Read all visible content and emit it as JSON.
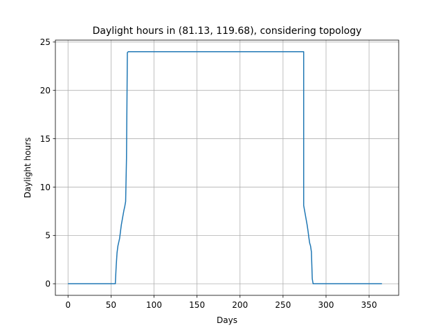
{
  "chart_data": {
    "type": "line",
    "title": "Daylight hours in (81.13, 119.68), considering topology",
    "xlabel": "Days",
    "ylabel": "Daylight hours",
    "xlim": [
      -14.7,
      384.5
    ],
    "ylim": [
      -1.2,
      25.2
    ],
    "xticks": [
      0,
      50,
      100,
      150,
      200,
      250,
      300,
      350
    ],
    "yticks": [
      0,
      5,
      10,
      15,
      20,
      25
    ],
    "grid": true,
    "legend": "none",
    "colors": {
      "line": "#1f77b4",
      "grid": "#b0b0b0"
    },
    "series": [
      {
        "x": [
          0,
          55,
          56,
          57,
          58,
          59,
          60,
          61,
          62,
          63,
          64,
          65,
          66,
          67,
          68,
          69,
          70,
          71,
          72,
          73,
          274,
          274,
          275,
          276,
          277,
          278,
          279,
          280,
          281,
          282,
          283,
          284,
          285,
          286,
          287,
          288,
          289,
          290,
          365
        ],
        "y": [
          0,
          0,
          1.8,
          3.2,
          3.9,
          4.3,
          4.7,
          5.4,
          6.1,
          6.6,
          7.1,
          7.6,
          8.0,
          8.5,
          13.0,
          23.9,
          24,
          24,
          24,
          24,
          24,
          8.1,
          7.6,
          7.1,
          6.6,
          6.1,
          5.5,
          4.8,
          4.2,
          3.9,
          3.3,
          0.5,
          0,
          0,
          0,
          0,
          0,
          0,
          0
        ]
      }
    ]
  }
}
